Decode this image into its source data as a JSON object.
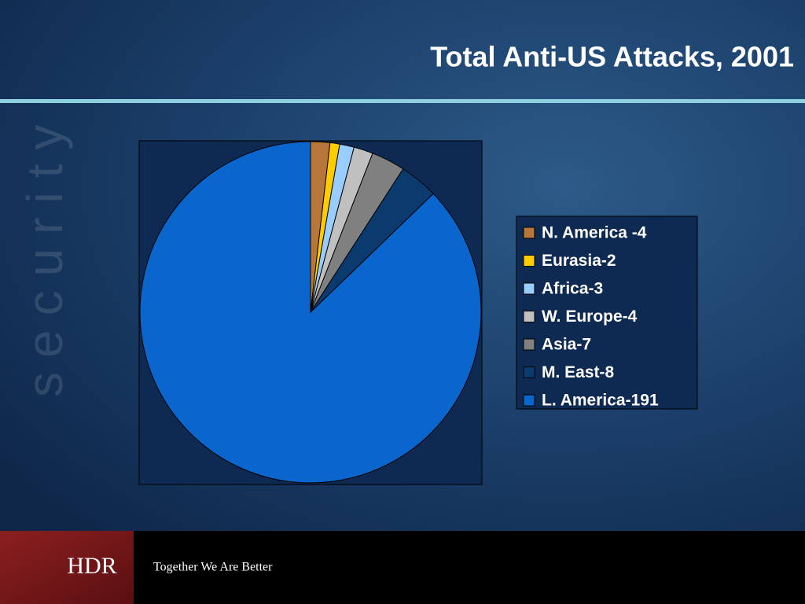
{
  "chart_data": {
    "type": "pie",
    "title": "Total Anti-US Attacks, 2001",
    "categories": [
      "N. America -4",
      "Eurasia-2",
      "Africa-3",
      "W. Europe-4",
      "Asia-7",
      "M. East-8",
      "L. America-191"
    ],
    "values": [
      4,
      2,
      3,
      4,
      7,
      8,
      191
    ],
    "colors": [
      "#b8773a",
      "#ffcc00",
      "#99ccff",
      "#c0c0c0",
      "#808080",
      "#0a3a6e",
      "#0a66cc"
    ],
    "legend": "right"
  },
  "watermark": "security",
  "footer": {
    "logo": "HDR",
    "tagline": "Together We Are Better"
  }
}
